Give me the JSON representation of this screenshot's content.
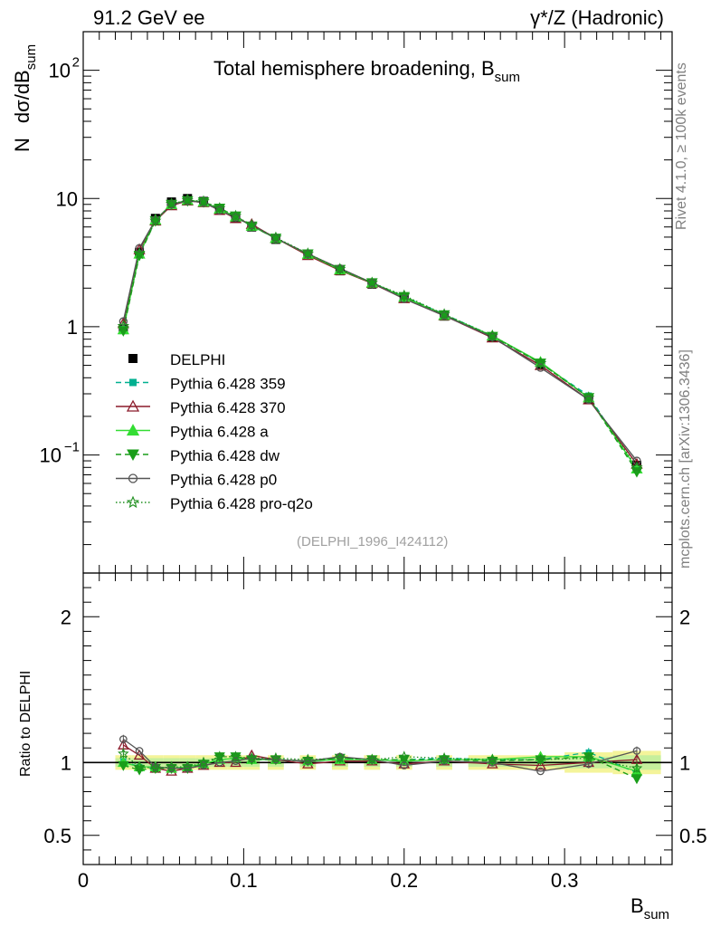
{
  "header": {
    "left": "91.2 GeV ee",
    "right": "γ*/Z (Hadronic)"
  },
  "side_labels": {
    "rivet": "Rivet 4.1.0, ≥ 100k events",
    "mcplots": "mcplots.cern.ch [arXiv:1306.3436]"
  },
  "chart_data": [
    {
      "type": "line",
      "scale": "log",
      "title": "Total hemisphere broadening, B",
      "title_sub": "sum",
      "ylabel_n": "N",
      "ylabel": "dσ/dB",
      "ylabel_sub": "sum",
      "ylim": [
        0.012,
        200
      ],
      "xlim": [
        0.0,
        0.367
      ],
      "ytick_labels": {
        "main100_base": "10",
        "main100_exp": "2",
        "ten": "10",
        "one": "1",
        "tenth_base": "10",
        "tenth_exp": "−1"
      },
      "ref_label": "(DELPHI_1996_I424112)",
      "x": [
        0.025,
        0.035,
        0.045,
        0.055,
        0.065,
        0.075,
        0.085,
        0.095,
        0.105,
        0.12,
        0.14,
        0.16,
        0.18,
        0.2,
        0.225,
        0.255,
        0.285,
        0.315,
        0.345
      ],
      "data": {
        "name": "DELPHI",
        "values": [
          0.95,
          3.8,
          7.0,
          9.4,
          10.0,
          9.5,
          8.1,
          7.0,
          6.0,
          4.8,
          3.65,
          2.73,
          2.15,
          1.68,
          1.21,
          0.83,
          0.51,
          0.27,
          0.083
        ]
      },
      "series": [
        {
          "name": "Pythia 6.428 359",
          "color": "#00b090",
          "marker": "square",
          "dash": "6,4",
          "values": [
            0.96,
            3.7,
            6.7,
            9.0,
            9.7,
            9.4,
            8.3,
            7.2,
            6.1,
            4.9,
            3.7,
            2.8,
            2.2,
            1.72,
            1.25,
            0.85,
            0.52,
            0.29,
            0.077
          ]
        },
        {
          "name": "Pythia 6.428 370",
          "color": "#8b1a2a",
          "marker": "triangle-open",
          "dash": "",
          "values": [
            1.06,
            4.0,
            6.7,
            8.8,
            9.6,
            9.3,
            8.1,
            7.0,
            6.3,
            4.9,
            3.6,
            2.75,
            2.18,
            1.66,
            1.22,
            0.82,
            0.5,
            0.27,
            0.085
          ]
        },
        {
          "name": "Pythia 6.428 a",
          "color": "#33dd33",
          "marker": "triangle",
          "dash": "",
          "values": [
            0.95,
            3.7,
            6.8,
            9.0,
            9.7,
            9.4,
            8.3,
            7.2,
            6.1,
            4.9,
            3.68,
            2.78,
            2.2,
            1.7,
            1.23,
            0.85,
            0.53,
            0.28,
            0.078
          ]
        },
        {
          "name": "Pythia 6.428 dw",
          "color": "#1a9e1a",
          "marker": "triangle-down",
          "dash": "6,4",
          "values": [
            0.93,
            3.6,
            6.7,
            9.0,
            9.6,
            9.4,
            8.4,
            7.3,
            6.1,
            4.9,
            3.7,
            2.8,
            2.2,
            1.72,
            1.24,
            0.84,
            0.52,
            0.28,
            0.074
          ]
        },
        {
          "name": "Pythia 6.428 p0",
          "color": "#555555",
          "marker": "circle-open",
          "dash": "",
          "values": [
            1.1,
            4.1,
            6.8,
            9.0,
            9.6,
            9.3,
            8.1,
            7.1,
            6.2,
            4.9,
            3.7,
            2.85,
            2.2,
            1.65,
            1.22,
            0.83,
            0.48,
            0.27,
            0.09
          ]
        },
        {
          "name": "Pythia 6.428 pro-q2o",
          "color": "#1f8f1f",
          "marker": "star-open",
          "dash": "1.5,2.5",
          "values": [
            1.01,
            3.7,
            6.7,
            9.1,
            9.7,
            9.5,
            8.4,
            7.3,
            6.2,
            4.95,
            3.72,
            2.82,
            2.2,
            1.75,
            1.25,
            0.85,
            0.52,
            0.28,
            0.08
          ]
        }
      ]
    },
    {
      "type": "line",
      "scale": "linear",
      "ylabel": "Ratio to DELPHI",
      "xlabel": "B",
      "xlabel_sub": "sum",
      "ylim": [
        0.3,
        2.3
      ],
      "xlim": [
        0.0,
        0.367
      ],
      "yticks_major": [
        0.5,
        1,
        2
      ],
      "ytick_labels": [
        "0.5",
        "1",
        "2"
      ],
      "xticks_major": [
        0,
        0.1,
        0.2,
        0.3
      ],
      "xtick_labels": [
        "0",
        "0.1",
        "0.2",
        "0.3"
      ],
      "x": [
        0.025,
        0.035,
        0.045,
        0.055,
        0.065,
        0.075,
        0.085,
        0.095,
        0.105,
        0.12,
        0.14,
        0.16,
        0.18,
        0.2,
        0.225,
        0.255,
        0.285,
        0.315,
        0.345
      ],
      "band_inner": [
        0.03,
        0.03,
        0.03,
        0.03,
        0.03,
        0.03,
        0.03,
        0.03,
        0.03,
        0.03,
        0.03,
        0.03,
        0.03,
        0.03,
        0.03,
        0.03,
        0.03,
        0.04,
        0.05
      ],
      "band_outer": [
        0.05,
        0.05,
        0.05,
        0.05,
        0.05,
        0.05,
        0.05,
        0.05,
        0.05,
        0.05,
        0.05,
        0.05,
        0.05,
        0.05,
        0.05,
        0.05,
        0.05,
        0.07,
        0.08
      ],
      "series": [
        {
          "name": "Pythia 6.428 359",
          "values": [
            1.01,
            0.97,
            0.96,
            0.96,
            0.97,
            0.99,
            1.02,
            1.03,
            1.02,
            1.02,
            1.01,
            1.03,
            1.02,
            1.02,
            1.03,
            1.02,
            1.02,
            1.07,
            0.93
          ]
        },
        {
          "name": "Pythia 6.428 370",
          "values": [
            1.12,
            1.05,
            0.96,
            0.94,
            0.96,
            0.98,
            1.0,
            1.0,
            1.05,
            1.02,
            0.99,
            1.01,
            1.01,
            0.99,
            1.01,
            0.99,
            0.98,
            1.0,
            1.02
          ]
        },
        {
          "name": "Pythia 6.428 a",
          "values": [
            1.0,
            0.97,
            0.97,
            0.96,
            0.97,
            0.99,
            1.02,
            1.03,
            1.02,
            1.02,
            1.01,
            1.02,
            1.02,
            1.01,
            1.02,
            1.02,
            1.04,
            1.04,
            0.94
          ]
        },
        {
          "name": "Pythia 6.428 dw",
          "values": [
            0.98,
            0.95,
            0.96,
            0.96,
            0.96,
            0.99,
            1.04,
            1.04,
            1.02,
            1.02,
            1.01,
            1.03,
            1.02,
            1.02,
            1.02,
            1.01,
            1.02,
            1.04,
            0.89
          ]
        },
        {
          "name": "Pythia 6.428 p0",
          "values": [
            1.16,
            1.08,
            0.97,
            0.96,
            0.96,
            0.98,
            1.0,
            1.01,
            1.03,
            1.02,
            1.01,
            1.04,
            1.02,
            0.98,
            1.01,
            1.0,
            0.94,
            0.99,
            1.08
          ]
        },
        {
          "name": "Pythia 6.428 pro-q2o",
          "values": [
            1.06,
            0.97,
            0.96,
            0.97,
            0.97,
            1.0,
            1.04,
            1.04,
            1.03,
            1.03,
            1.02,
            1.03,
            1.02,
            1.04,
            1.03,
            1.02,
            1.02,
            1.03,
            0.96
          ]
        }
      ]
    }
  ]
}
